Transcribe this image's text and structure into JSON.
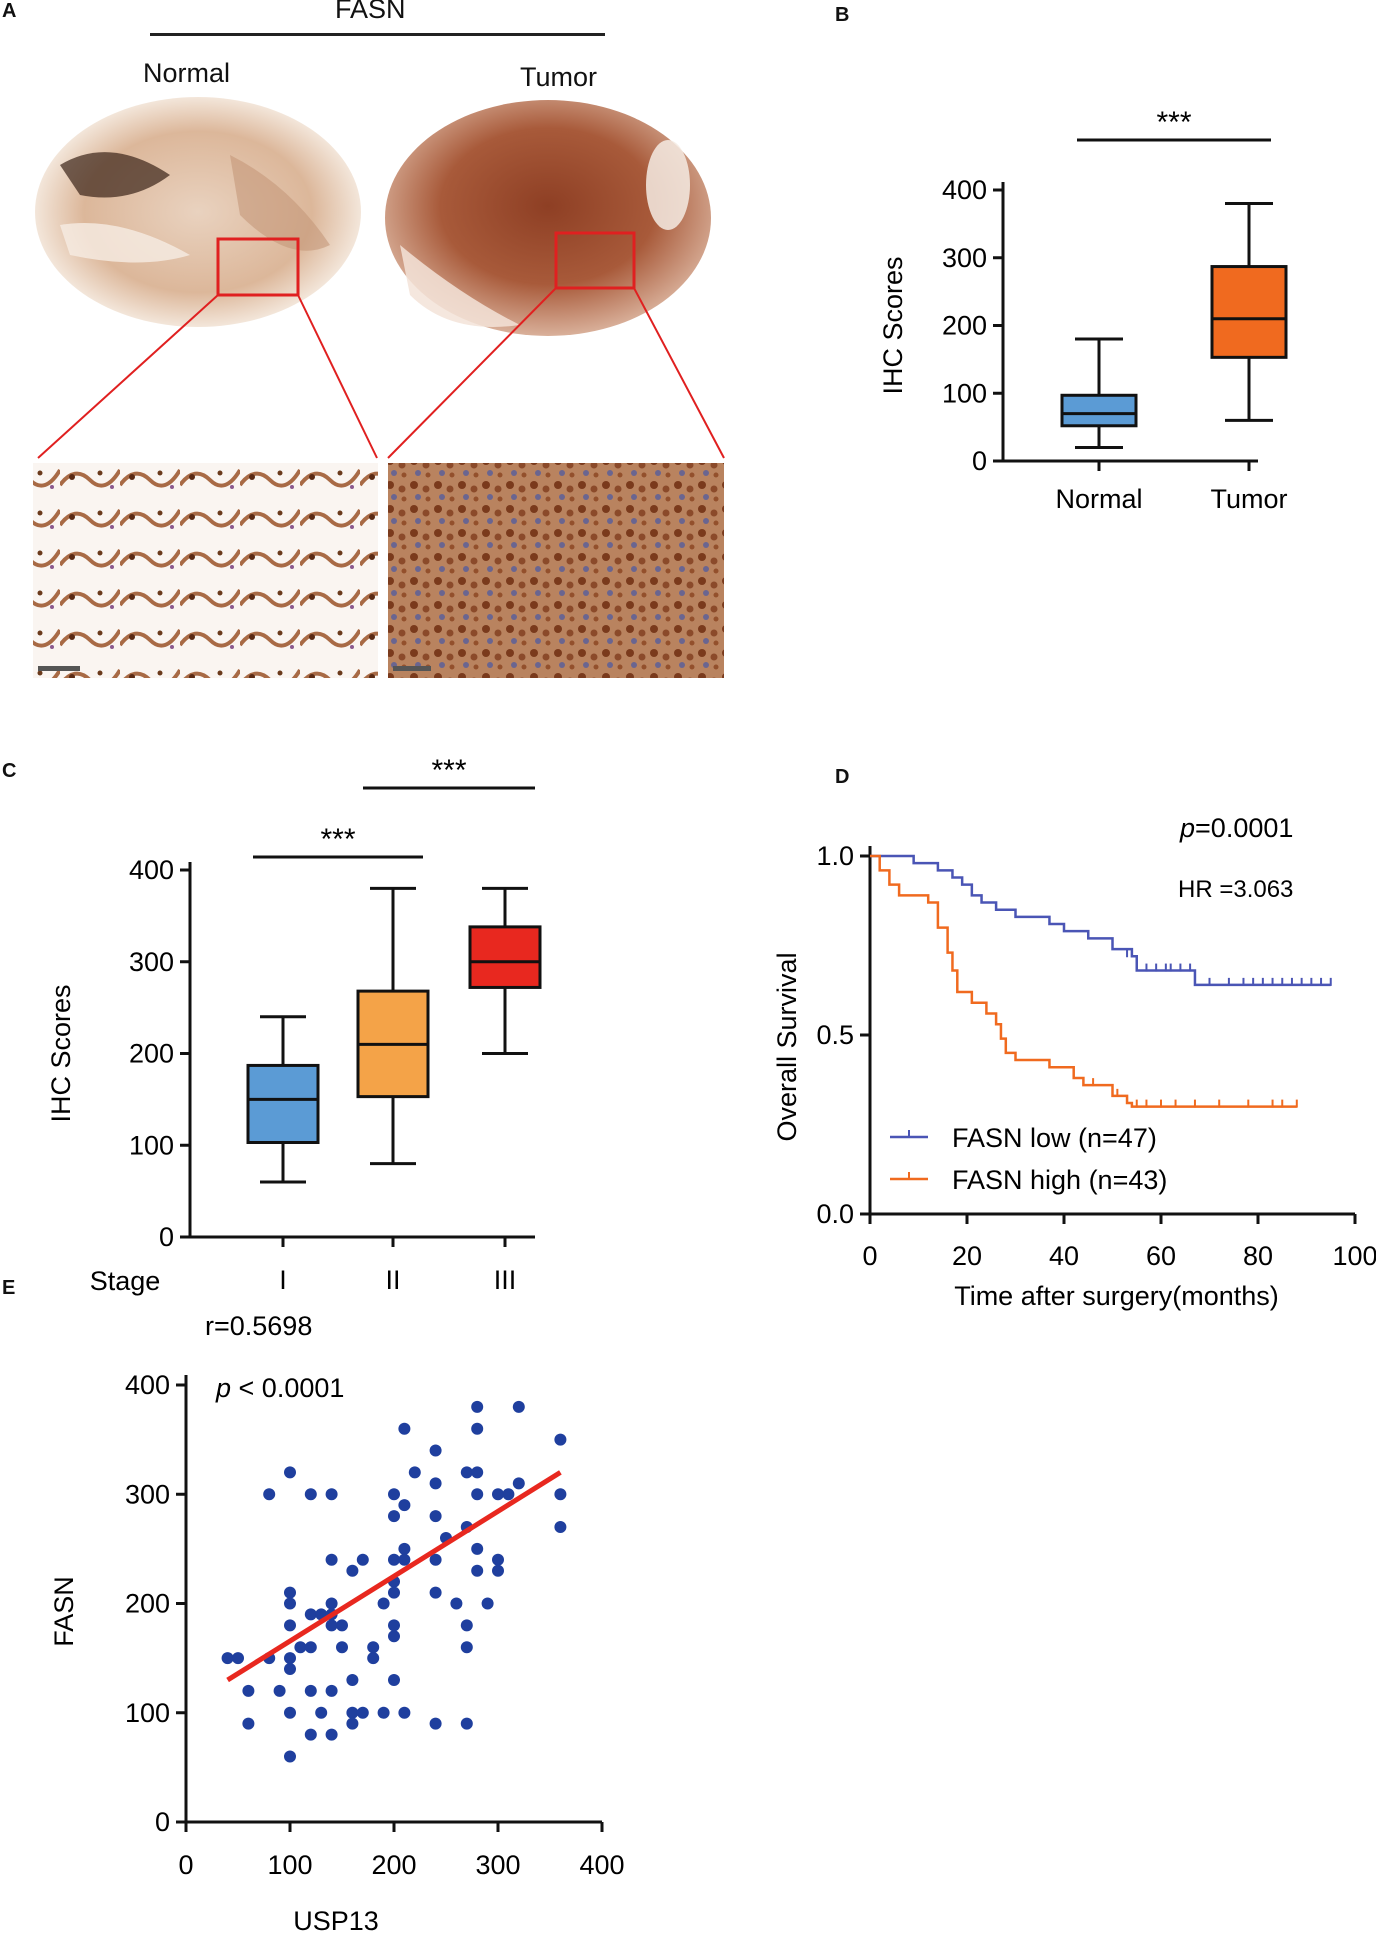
{
  "chart_data": [
    {
      "panel": "A",
      "type": "image",
      "title": "FASN",
      "groups": [
        "Normal",
        "Tumor"
      ]
    },
    {
      "panel": "B",
      "type": "box",
      "ylabel": "IHC Scores",
      "ylim": [
        0,
        400
      ],
      "yticks": [
        0,
        100,
        200,
        300,
        400
      ],
      "categories": [
        "Normal",
        "Tumor"
      ],
      "boxes": [
        {
          "name": "Normal",
          "min": 20,
          "q1": 52,
          "median": 70,
          "q3": 97,
          "max": 180,
          "color": "#5b9bd5"
        },
        {
          "name": "Tumor",
          "min": 60,
          "q1": 153,
          "median": 210,
          "q3": 287,
          "max": 380,
          "color": "#f06a1f"
        }
      ],
      "significance": [
        {
          "from": "Normal",
          "to": "Tumor",
          "label": "***"
        }
      ]
    },
    {
      "panel": "C",
      "type": "box",
      "ylabel": "IHC Scores",
      "xlabel": "Stage",
      "ylim": [
        0,
        400
      ],
      "yticks": [
        0,
        100,
        200,
        300,
        400
      ],
      "categories": [
        "I",
        "II",
        "III"
      ],
      "boxes": [
        {
          "name": "I",
          "min": 60,
          "q1": 103,
          "median": 150,
          "q3": 187,
          "max": 240,
          "color": "#5b9bd5"
        },
        {
          "name": "II",
          "min": 80,
          "q1": 153,
          "median": 210,
          "q3": 268,
          "max": 380,
          "color": "#f4a348"
        },
        {
          "name": "III",
          "min": 200,
          "q1": 272,
          "median": 300,
          "q3": 338,
          "max": 380,
          "color": "#e8281f"
        }
      ],
      "significance": [
        {
          "from": "I",
          "to": "II",
          "label": "***"
        },
        {
          "from": "II",
          "to": "III",
          "label": "***"
        }
      ]
    },
    {
      "panel": "D",
      "type": "line",
      "subtype": "kaplan-meier",
      "xlabel": "Time after surgery(months)",
      "ylabel": "Overall Survival",
      "xlim": [
        0,
        100
      ],
      "ylim": [
        0,
        1
      ],
      "xticks": [
        0,
        20,
        40,
        60,
        80,
        100
      ],
      "yticks": [
        "0.0",
        "0.5",
        "1.0"
      ],
      "p_prefix": "p",
      "p_value": "=0.0001",
      "hr_text": "HR =3.063",
      "series": [
        {
          "name": "FASN low (n=47)",
          "color": "#4a55b5",
          "steps": [
            [
              0,
              1.0
            ],
            [
              9,
              0.98
            ],
            [
              14,
              0.96
            ],
            [
              17,
              0.94
            ],
            [
              19,
              0.92
            ],
            [
              21,
              0.89
            ],
            [
              23,
              0.87
            ],
            [
              26,
              0.85
            ],
            [
              30,
              0.83
            ],
            [
              37,
              0.81
            ],
            [
              40,
              0.79
            ],
            [
              45,
              0.77
            ],
            [
              50,
              0.74
            ],
            [
              54,
              0.72
            ],
            [
              55,
              0.68
            ],
            [
              67,
              0.64
            ],
            [
              95,
              0.64
            ]
          ],
          "censors": [
            [
              53,
              0.72
            ],
            [
              57,
              0.68
            ],
            [
              59,
              0.68
            ],
            [
              61,
              0.68
            ],
            [
              62,
              0.68
            ],
            [
              64,
              0.68
            ],
            [
              66,
              0.68
            ],
            [
              70,
              0.64
            ],
            [
              74,
              0.64
            ],
            [
              77,
              0.64
            ],
            [
              79,
              0.64
            ],
            [
              81,
              0.64
            ],
            [
              83,
              0.64
            ],
            [
              85,
              0.64
            ],
            [
              87,
              0.64
            ],
            [
              89,
              0.64
            ],
            [
              91,
              0.64
            ],
            [
              93,
              0.64
            ],
            [
              95,
              0.64
            ]
          ]
        },
        {
          "name": "FASN high (n=43)",
          "color": "#f06a1f",
          "steps": [
            [
              0,
              1.0
            ],
            [
              2,
              0.96
            ],
            [
              4,
              0.92
            ],
            [
              6,
              0.89
            ],
            [
              12,
              0.87
            ],
            [
              14,
              0.8
            ],
            [
              16,
              0.73
            ],
            [
              17,
              0.68
            ],
            [
              18,
              0.62
            ],
            [
              21,
              0.59
            ],
            [
              24,
              0.56
            ],
            [
              26,
              0.53
            ],
            [
              27,
              0.49
            ],
            [
              28,
              0.45
            ],
            [
              30,
              0.43
            ],
            [
              37,
              0.41
            ],
            [
              42,
              0.38
            ],
            [
              44,
              0.36
            ],
            [
              50,
              0.33
            ],
            [
              53,
              0.31
            ],
            [
              54,
              0.3
            ],
            [
              88,
              0.3
            ]
          ],
          "censors": [
            [
              46,
              0.36
            ],
            [
              51,
              0.33
            ],
            [
              55,
              0.3
            ],
            [
              57,
              0.3
            ],
            [
              60,
              0.3
            ],
            [
              63,
              0.3
            ],
            [
              67,
              0.3
            ],
            [
              72,
              0.3
            ],
            [
              78,
              0.3
            ],
            [
              83,
              0.3
            ],
            [
              85,
              0.3
            ],
            [
              88,
              0.3
            ]
          ]
        }
      ]
    },
    {
      "panel": "E",
      "type": "scatter",
      "xlabel": "USP13",
      "ylabel": "FASN",
      "xlim": [
        0,
        400
      ],
      "ylim": [
        0,
        400
      ],
      "xticks": [
        0,
        100,
        200,
        300,
        400
      ],
      "yticks": [
        0,
        100,
        200,
        300,
        400
      ],
      "r_text": "r=0.5698",
      "p_prefix": "p",
      "p_value": "< 0.0001",
      "point_color": "#1f3f9e",
      "fit_line": {
        "x": [
          40,
          360
        ],
        "y": [
          130,
          320
        ],
        "color": "#e8281f"
      },
      "points": [
        [
          40,
          150
        ],
        [
          50,
          150
        ],
        [
          60,
          120
        ],
        [
          60,
          90
        ],
        [
          80,
          300
        ],
        [
          80,
          150
        ],
        [
          90,
          120
        ],
        [
          100,
          320
        ],
        [
          100,
          210
        ],
        [
          100,
          200
        ],
        [
          100,
          180
        ],
        [
          100,
          150
        ],
        [
          100,
          140
        ],
        [
          100,
          100
        ],
        [
          100,
          60
        ],
        [
          110,
          160
        ],
        [
          120,
          300
        ],
        [
          120,
          190
        ],
        [
          120,
          160
        ],
        [
          120,
          120
        ],
        [
          120,
          80
        ],
        [
          130,
          190
        ],
        [
          130,
          100
        ],
        [
          140,
          300
        ],
        [
          140,
          240
        ],
        [
          140,
          200
        ],
        [
          140,
          190
        ],
        [
          140,
          180
        ],
        [
          140,
          120
        ],
        [
          140,
          80
        ],
        [
          150,
          180
        ],
        [
          150,
          160
        ],
        [
          160,
          230
        ],
        [
          160,
          130
        ],
        [
          160,
          100
        ],
        [
          160,
          90
        ],
        [
          170,
          240
        ],
        [
          170,
          100
        ],
        [
          180,
          160
        ],
        [
          180,
          150
        ],
        [
          190,
          200
        ],
        [
          190,
          100
        ],
        [
          200,
          300
        ],
        [
          200,
          280
        ],
        [
          200,
          240
        ],
        [
          200,
          220
        ],
        [
          200,
          210
        ],
        [
          200,
          180
        ],
        [
          200,
          170
        ],
        [
          200,
          130
        ],
        [
          210,
          360
        ],
        [
          210,
          290
        ],
        [
          210,
          250
        ],
        [
          210,
          240
        ],
        [
          210,
          100
        ],
        [
          220,
          320
        ],
        [
          240,
          340
        ],
        [
          240,
          310
        ],
        [
          240,
          280
        ],
        [
          240,
          240
        ],
        [
          240,
          210
        ],
        [
          240,
          90
        ],
        [
          250,
          260
        ],
        [
          260,
          200
        ],
        [
          270,
          320
        ],
        [
          270,
          270
        ],
        [
          270,
          180
        ],
        [
          270,
          160
        ],
        [
          270,
          90
        ],
        [
          280,
          380
        ],
        [
          280,
          360
        ],
        [
          280,
          320
        ],
        [
          280,
          300
        ],
        [
          280,
          250
        ],
        [
          280,
          230
        ],
        [
          290,
          200
        ],
        [
          300,
          300
        ],
        [
          300,
          240
        ],
        [
          300,
          230
        ],
        [
          310,
          300
        ],
        [
          320,
          380
        ],
        [
          320,
          310
        ],
        [
          360,
          350
        ],
        [
          360,
          300
        ],
        [
          360,
          270
        ]
      ]
    }
  ],
  "panels": {
    "a": {
      "letter": "A",
      "title": "FASN",
      "normal": "Normal",
      "tumor": "Tumor"
    },
    "b": {
      "letter": "B"
    },
    "c": {
      "letter": "C"
    },
    "d": {
      "letter": "D"
    },
    "e": {
      "letter": "E"
    }
  }
}
